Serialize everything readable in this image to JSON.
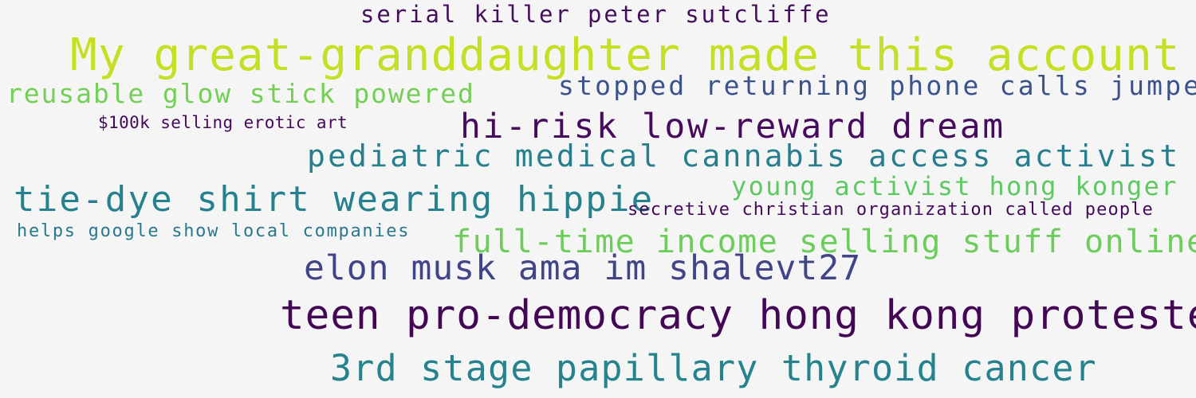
{
  "phrases": [
    {
      "id": "serial-killer",
      "text": "serial killer peter sutcliffe",
      "color": "#440f5c"
    },
    {
      "id": "great-granddaughter",
      "text": "My great-granddaughter made this account",
      "color": "#c6df23"
    },
    {
      "id": "glow-stick",
      "text": "reusable glow stick powered",
      "color": "#74d054"
    },
    {
      "id": "phone-calls",
      "text": "stopped returning phone calls jumped",
      "color": "#3b528b"
    },
    {
      "id": "erotic-art",
      "text": "$100k selling erotic art",
      "color": "#45085a"
    },
    {
      "id": "hi-risk",
      "text": "hi-risk low-reward dream",
      "color": "#470a5e"
    },
    {
      "id": "cannabis",
      "text": "pediatric medical cannabis access activist",
      "color": "#277f8e"
    },
    {
      "id": "hippie",
      "text": "tie-dye shirt wearing hippie",
      "color": "#26818e"
    },
    {
      "id": "hong-konger",
      "text": "young activist hong konger",
      "color": "#5ec962"
    },
    {
      "id": "christian-org",
      "text": "secretive christian organization called people",
      "color": "#450a5c"
    },
    {
      "id": "google",
      "text": "helps google show local companies",
      "color": "#2a788e"
    },
    {
      "id": "selling-online",
      "text": "full-time income selling stuff online",
      "color": "#6ccd5a"
    },
    {
      "id": "elon-musk",
      "text": "elon musk ama im shalevt27",
      "color": "#414487"
    },
    {
      "id": "protester",
      "text": "teen pro-democracy hong kong protester",
      "color": "#440756"
    },
    {
      "id": "thyroid",
      "text": "3rd stage papillary thyroid cancer",
      "color": "#25838e"
    }
  ]
}
